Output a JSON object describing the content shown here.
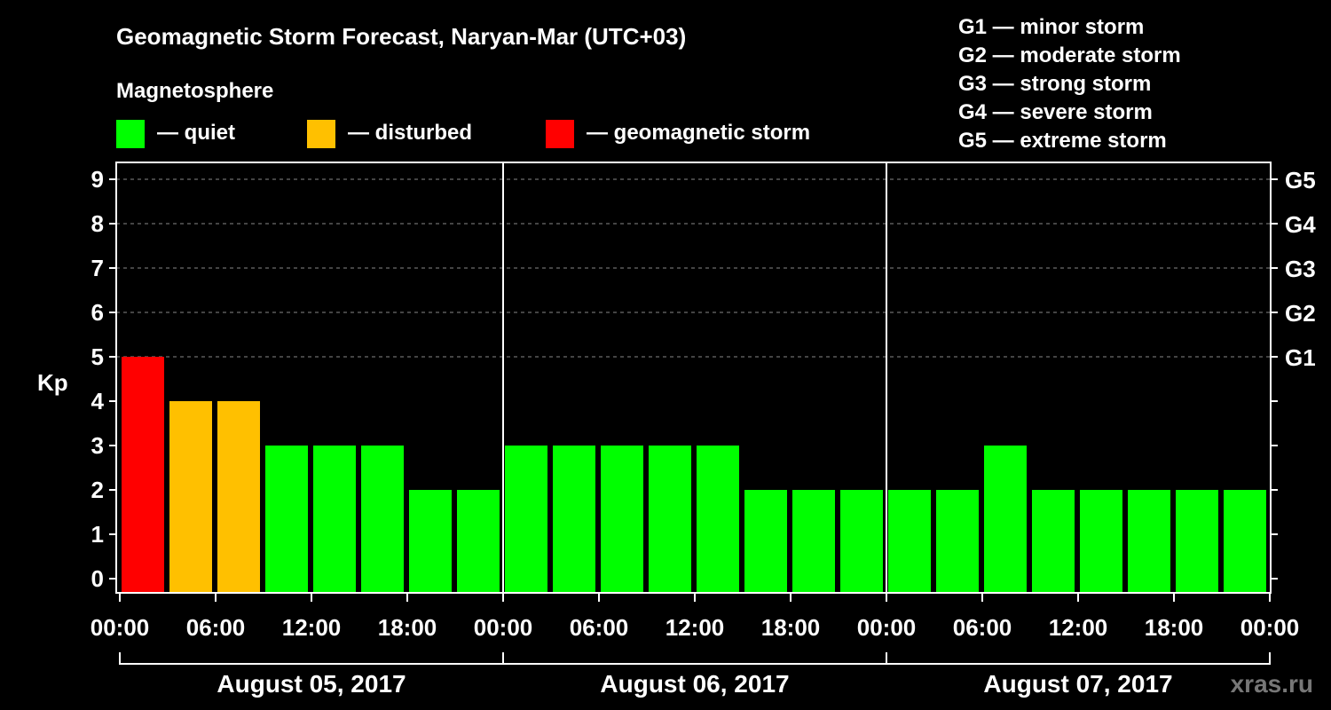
{
  "chart_data": {
    "type": "bar",
    "title": "Geomagnetic Storm Forecast, Naryan-Mar (UTC+03)",
    "legend_title": "Magnetosphere",
    "legend": [
      {
        "label": "— quiet",
        "color": "#00ff00"
      },
      {
        "label": "— disturbed",
        "color": "#ffc000"
      },
      {
        "label": "— geomagnetic storm",
        "color": "#ff0000"
      }
    ],
    "g_scale": [
      "G1 — minor storm",
      "G2 — moderate storm",
      "G3 — strong storm",
      "G4 — severe storm",
      "G5 — extreme storm"
    ],
    "ylabel": "Kp",
    "ylim": [
      0,
      9
    ],
    "yticks": [
      "0",
      "1",
      "2",
      "3",
      "4",
      "5",
      "6",
      "7",
      "8",
      "9"
    ],
    "right_ticks": [
      {
        "kp": 5,
        "label": "G1"
      },
      {
        "kp": 6,
        "label": "G2"
      },
      {
        "kp": 7,
        "label": "G3"
      },
      {
        "kp": 8,
        "label": "G4"
      },
      {
        "kp": 9,
        "label": "G5"
      }
    ],
    "xtick_labels": [
      "00:00",
      "06:00",
      "12:00",
      "18:00",
      "00:00",
      "06:00",
      "12:00",
      "18:00",
      "00:00",
      "06:00",
      "12:00",
      "18:00",
      "00:00"
    ],
    "days": [
      "August 05, 2017",
      "August 06, 2017",
      "August 07, 2017"
    ],
    "interval_hours": 3,
    "values": [
      5,
      4,
      4,
      3,
      3,
      3,
      2,
      2,
      3,
      3,
      3,
      3,
      3,
      2,
      2,
      2,
      2,
      2,
      3,
      2,
      2,
      2,
      2,
      2
    ],
    "watermark": "xras.ru"
  }
}
